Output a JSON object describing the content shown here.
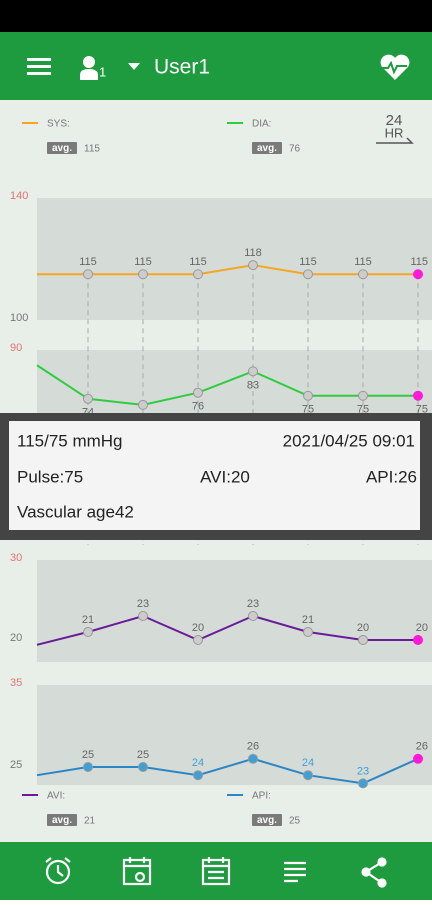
{
  "header": {
    "user_badge": "1",
    "user": "User1"
  },
  "bp_legend": {
    "range_icon": [
      "24",
      "HR"
    ],
    "items": [
      {
        "name": "SYS:",
        "avg_label": "avg.",
        "avg": 115
      },
      {
        "name": "DIA:",
        "avg_label": "avg.",
        "avg": 76
      }
    ]
  },
  "bp_chart": {
    "type": "line",
    "series": [
      {
        "name": "SYS",
        "color": "#f5a623",
        "ylim": [
          100,
          140
        ],
        "yticks": [
          140,
          100
        ],
        "ytick_colors": [
          "#e57373",
          "#777777"
        ],
        "values": [
          115,
          115,
          115,
          115,
          118,
          115,
          115,
          115
        ],
        "value_labels": [
          null,
          "115",
          "115",
          "115",
          "118",
          "115",
          "115",
          "115"
        ],
        "point_color": "#cccccc",
        "last_point_color": "#ff1ad9"
      },
      {
        "name": "DIA",
        "color": "#2ecc40",
        "ylim": [
          50,
          90
        ],
        "yticks": [
          90
        ],
        "ytick_colors": [
          "#e57373"
        ],
        "values": [
          85,
          74,
          72,
          76,
          83,
          75,
          75,
          75
        ],
        "value_labels": [
          null,
          "74",
          null,
          "76",
          "83",
          "75",
          "75",
          "75"
        ],
        "point_color": "#cccccc",
        "last_point_color": "#ff1ad9"
      }
    ]
  },
  "popup": {
    "bp": "115/75 mmHg",
    "time": "2021/04/25 09:01",
    "pulse": "Pulse:75",
    "avi": "AVI:20",
    "api": "API:26",
    "vascular": "Vascular age42"
  },
  "avi_chart": {
    "type": "line",
    "series": [
      {
        "name": "AVI",
        "color": "#6a1b9a",
        "ylim": [
          20,
          30
        ],
        "yticks": [
          30,
          20
        ],
        "ytick_colors": [
          "#e57373",
          "#777777"
        ],
        "values": [
          19.4,
          21,
          23,
          20,
          23,
          21,
          20,
          20
        ],
        "value_labels": [
          null,
          "21",
          "23",
          "20",
          "23",
          "21",
          "20",
          "20"
        ],
        "point_color": "#cccccc",
        "last_point_color": "#ff1ad9"
      }
    ]
  },
  "api_chart": {
    "type": "line",
    "series": [
      {
        "name": "API",
        "color": "#2b86c5",
        "ylim": [
          25,
          35
        ],
        "yticks": [
          35,
          25
        ],
        "ytick_colors": [
          "#e57373",
          "#777777"
        ],
        "values": [
          24,
          25,
          25,
          24,
          26,
          24,
          23,
          26
        ],
        "value_labels": [
          null,
          "25",
          "25",
          "24",
          "26",
          "24",
          "23",
          "26"
        ],
        "value_label_colors": [
          null,
          "#666666",
          "#666666",
          "#3fa0d8",
          "#666666",
          "#3fa0d8",
          "#3fa0d8",
          "#666666"
        ],
        "point_color": "#3fa0d8",
        "last_point_color": "#ff1ad9"
      }
    ]
  },
  "bottom_legend": {
    "items": [
      {
        "name": "AVI:",
        "avg_label": "avg.",
        "avg": 21
      },
      {
        "name": "API:",
        "avg_label": "avg.",
        "avg": 25
      }
    ]
  }
}
